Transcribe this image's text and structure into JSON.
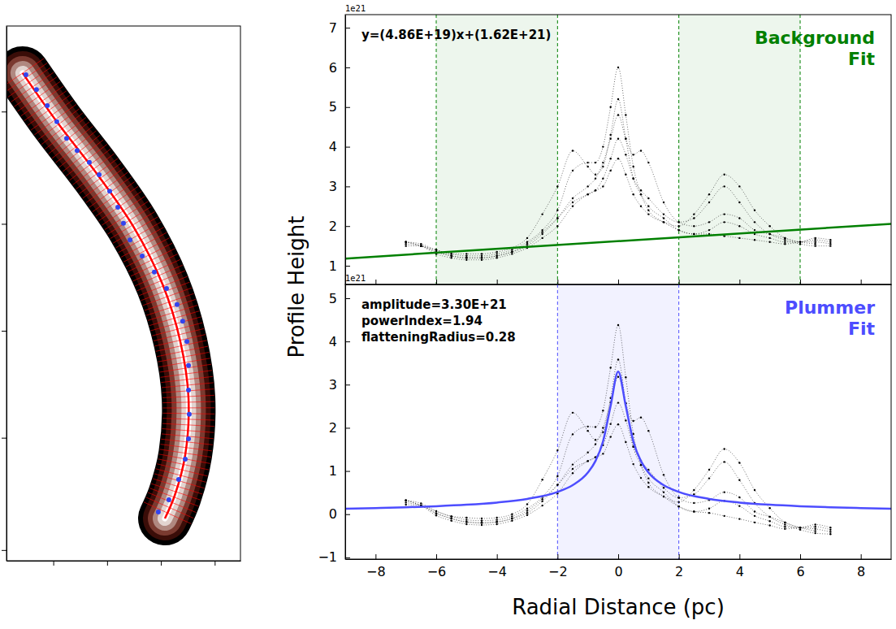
{
  "chart_data": [
    {
      "type": "image",
      "xlim": [
        0,
        100
      ],
      "ylim": [
        0,
        100
      ],
      "xticks": [
        20,
        43,
        66,
        89
      ],
      "yticks": [
        2,
        23,
        43,
        63,
        84
      ],
      "tick_labels": false,
      "series": [
        {
          "type": "line",
          "color": "#ff0000",
          "line_style": "solid",
          "x": [
            6.9,
            21.5,
            38.9,
            54.5,
            66.7,
            74.3,
            77.8,
            76.4,
            71.9,
            67.7
          ],
          "values": [
            91.2,
            82.1,
            72.2,
            62.3,
            51.7,
            41.0,
            30.4,
            19.8,
            12.2,
            7.9
          ]
        },
        {
          "type": "scatter",
          "color": "#3344ee",
          "marker": "circle",
          "x": [
            8.3,
            12.8,
            17.4,
            21.5,
            25.7,
            30.2,
            35.4,
            39.6,
            44.1,
            47.6,
            50.0,
            52.8,
            58.0,
            63.2,
            68.4,
            72.9,
            75.3,
            77.1,
            77.8,
            77.8,
            78.1,
            77.8,
            76.4,
            73.6,
            69.4,
            64.9
          ],
          "values": [
            90.9,
            88.1,
            85.1,
            82.1,
            79.0,
            76.7,
            74.5,
            72.2,
            69.1,
            66.1,
            63.1,
            60.0,
            57.0,
            54.0,
            50.9,
            47.9,
            44.8,
            41.0,
            36.5,
            31.9,
            27.4,
            22.8,
            19.0,
            15.2,
            11.4,
            9.1
          ]
        }
      ]
    },
    {
      "type": "scatter",
      "title": "Background Fit",
      "offset_label": "1e21",
      "ylabel": "Profile Height",
      "annotations": [
        "y=(4.86E+19)x+(1.62E+21)"
      ],
      "xlim": [
        -9,
        9
      ],
      "ylim": [
        0.53,
        7.33
      ],
      "xticks": [
        -8,
        -6,
        -4,
        -2,
        0,
        2,
        4,
        6,
        8
      ],
      "yticks": [
        1,
        2,
        3,
        4,
        5,
        6,
        7
      ],
      "tick_labels": "y",
      "shaded_ranges": [
        [
          -6,
          -2
        ],
        [
          2,
          6
        ]
      ],
      "x": [
        -7,
        -6.5,
        -6,
        -5.5,
        -5,
        -4.5,
        -4,
        -3.5,
        -3,
        -2.5,
        -2,
        -1.5,
        -1,
        -0.75,
        -0.5,
        -0.25,
        0,
        0.25,
        0.5,
        0.75,
        1,
        1.5,
        2,
        2.5,
        3,
        3.5,
        4,
        4.5,
        5,
        5.5,
        6,
        6.5,
        7
      ],
      "series": [
        {
          "type": "scatter",
          "color": "#000000",
          "marker": "dot",
          "line_style": "dotted",
          "values": [
            1.6,
            1.55,
            1.4,
            1.3,
            1.25,
            1.25,
            1.3,
            1.4,
            1.6,
            1.9,
            2.4,
            3.4,
            3.6,
            3.6,
            4.0,
            5.0,
            6.0,
            4.8,
            3.5,
            2.8,
            2.4,
            2.1,
            1.9,
            1.8,
            1.8,
            1.75,
            1.7,
            1.65,
            1.6,
            1.55,
            1.6,
            1.65,
            1.6
          ]
        },
        {
          "type": "scatter",
          "color": "#000000",
          "marker": "dot",
          "line_style": "dotted",
          "values": [
            1.5,
            1.5,
            1.35,
            1.25,
            1.2,
            1.2,
            1.25,
            1.35,
            1.5,
            1.8,
            2.2,
            2.7,
            3.0,
            3.2,
            3.6,
            4.2,
            4.8,
            4.2,
            3.8,
            3.9,
            3.6,
            2.6,
            2.1,
            2.0,
            2.1,
            2.3,
            2.2,
            1.9,
            1.8,
            1.7,
            1.6,
            1.6,
            1.55
          ]
        },
        {
          "type": "scatter",
          "color": "#000000",
          "marker": "dot",
          "line_style": "dotted",
          "values": [
            1.6,
            1.5,
            1.3,
            1.2,
            1.15,
            1.15,
            1.2,
            1.3,
            1.45,
            1.7,
            2.0,
            2.5,
            2.8,
            2.9,
            3.0,
            3.4,
            3.7,
            3.3,
            2.8,
            2.5,
            2.3,
            2.1,
            2.0,
            2.3,
            2.8,
            3.3,
            3.0,
            2.4,
            2.0,
            1.7,
            1.6,
            1.55,
            null
          ]
        },
        {
          "type": "scatter",
          "color": "#000000",
          "marker": "dot",
          "line_style": "dotted",
          "values": [
            1.55,
            1.5,
            1.4,
            1.3,
            1.3,
            1.3,
            1.35,
            1.45,
            1.7,
            2.3,
            3.0,
            3.9,
            3.5,
            3.3,
            3.5,
            4.3,
            5.2,
            4.2,
            3.2,
            2.8,
            2.5,
            2.2,
            1.9,
            1.8,
            1.9,
            2.1,
            2.0,
            1.8,
            1.7,
            1.6,
            1.6,
            1.7,
            1.65
          ]
        },
        {
          "type": "scatter",
          "color": "#000000",
          "marker": "dot",
          "line_style": "dotted",
          "values": [
            1.6,
            1.5,
            1.35,
            1.25,
            1.2,
            1.2,
            1.25,
            1.35,
            1.55,
            1.85,
            2.2,
            2.6,
            2.8,
            2.9,
            3.2,
            3.7,
            4.2,
            3.8,
            3.2,
            2.9,
            2.7,
            2.3,
            2.1,
            2.2,
            2.6,
            3.0,
            2.6,
            2.1,
            1.8,
            1.65,
            1.55,
            1.5,
            1.5
          ]
        },
        {
          "type": "line",
          "color": "#008000",
          "line_style": "solid",
          "x": [
            -9,
            9
          ],
          "values": [
            1.1826,
            2.0574
          ]
        }
      ]
    },
    {
      "type": "scatter",
      "title": "Plummer Fit",
      "offset_label": "1e21",
      "xlabel": "Radial Distance (pc)",
      "annotations": [
        "amplitude=3.30E+21",
        "powerIndex=1.94",
        "flatteningRadius=0.28"
      ],
      "xlim": [
        -9,
        9
      ],
      "ylim": [
        -1.04,
        5.32
      ],
      "xticks": [
        -8,
        -6,
        -4,
        -2,
        0,
        2,
        4,
        6,
        8
      ],
      "yticks": [
        -1,
        0,
        1,
        2,
        3,
        4,
        5
      ],
      "shaded_ranges": [
        [
          -2,
          2
        ]
      ],
      "x": [
        -7,
        -6.5,
        -6,
        -5.5,
        -5,
        -4.5,
        -4,
        -3.5,
        -3,
        -2.5,
        -2,
        -1.5,
        -1,
        -0.75,
        -0.5,
        -0.25,
        0,
        0.25,
        0.5,
        0.75,
        1,
        1.5,
        2,
        2.5,
        3,
        3.5,
        4,
        4.5,
        5,
        5.5,
        6,
        6.5,
        7
      ],
      "series": [
        {
          "type": "scatter",
          "color": "#000000",
          "marker": "dot",
          "line_style": "dotted",
          "values": [
            0.32,
            0.25,
            0.07,
            -0.05,
            -0.13,
            -0.15,
            -0.13,
            -0.05,
            0.13,
            0.4,
            0.88,
            1.85,
            2.03,
            2.02,
            2.4,
            3.39,
            4.38,
            3.17,
            1.86,
            1.14,
            0.73,
            0.41,
            0.18,
            0.06,
            0.03,
            -0.04,
            -0.11,
            -0.19,
            -0.26,
            -0.34,
            -0.31,
            -0.29,
            -0.36
          ]
        },
        {
          "type": "scatter",
          "color": "#000000",
          "marker": "dot",
          "line_style": "dotted",
          "values": [
            0.22,
            0.2,
            0.02,
            -0.1,
            -0.18,
            -0.2,
            -0.18,
            -0.1,
            0.03,
            0.3,
            0.68,
            1.15,
            1.43,
            1.62,
            2.0,
            2.59,
            3.18,
            2.57,
            2.16,
            2.24,
            1.93,
            0.91,
            0.38,
            0.26,
            0.33,
            0.51,
            0.39,
            0.06,
            -0.06,
            -0.19,
            -0.31,
            -0.34,
            -0.41
          ]
        },
        {
          "type": "scatter",
          "color": "#000000",
          "marker": "dot",
          "line_style": "dotted",
          "values": [
            0.32,
            0.2,
            -0.03,
            -0.15,
            -0.23,
            -0.25,
            -0.23,
            -0.15,
            -0.02,
            0.2,
            0.48,
            0.95,
            1.23,
            1.32,
            1.4,
            1.79,
            2.08,
            1.67,
            1.16,
            0.84,
            0.63,
            0.41,
            0.28,
            0.56,
            1.03,
            1.51,
            1.19,
            0.56,
            0.14,
            -0.19,
            -0.31,
            -0.39,
            null
          ]
        },
        {
          "type": "scatter",
          "color": "#000000",
          "marker": "dot",
          "line_style": "dotted",
          "values": [
            0.27,
            0.2,
            0.07,
            -0.05,
            -0.08,
            -0.1,
            -0.08,
            0.0,
            0.23,
            0.8,
            1.48,
            2.35,
            1.93,
            1.72,
            1.9,
            2.69,
            3.58,
            2.57,
            1.56,
            1.14,
            0.83,
            0.51,
            0.18,
            0.06,
            0.13,
            0.31,
            0.19,
            -0.04,
            -0.16,
            -0.29,
            -0.31,
            -0.24,
            -0.31
          ]
        },
        {
          "type": "scatter",
          "color": "#000000",
          "marker": "dot",
          "line_style": "dotted",
          "values": [
            0.32,
            0.2,
            0.02,
            -0.1,
            -0.18,
            -0.2,
            -0.18,
            -0.1,
            0.08,
            0.35,
            0.68,
            1.05,
            1.23,
            1.32,
            1.6,
            2.09,
            2.58,
            2.17,
            1.56,
            1.24,
            1.03,
            0.61,
            0.38,
            0.46,
            0.83,
            1.21,
            0.79,
            0.26,
            -0.06,
            -0.24,
            -0.36,
            -0.44,
            -0.46
          ]
        },
        {
          "type": "line",
          "color": "#4d4dff",
          "line_style": "solid",
          "x": [
            -9,
            -8,
            -7,
            -6,
            -5,
            -4,
            -3,
            -2,
            -1.5,
            -1,
            -0.75,
            -0.5,
            -0.25,
            0,
            0.25,
            0.5,
            0.75,
            1,
            1.5,
            2,
            3,
            4,
            5,
            6,
            7,
            8,
            9
          ],
          "values": [
            0.126,
            0.141,
            0.16,
            0.185,
            0.219,
            0.27,
            0.354,
            0.515,
            0.671,
            0.963,
            1.229,
            1.684,
            2.506,
            3.3,
            2.506,
            1.684,
            1.229,
            0.963,
            0.671,
            0.515,
            0.354,
            0.27,
            0.219,
            0.185,
            0.16,
            0.141,
            0.126
          ]
        }
      ]
    }
  ]
}
